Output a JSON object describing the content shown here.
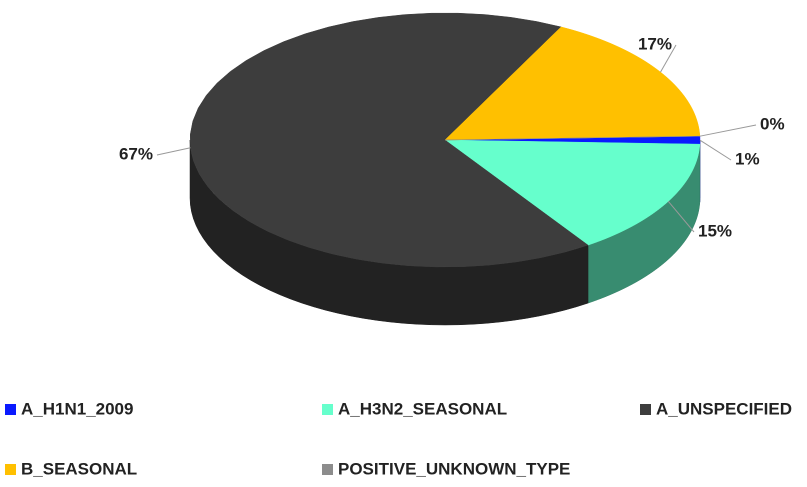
{
  "chart_data": {
    "type": "pie3d",
    "categories": [
      "A_H1N1_2009",
      "A_H3N2_SEASONAL",
      "A_UNSPECIFIED",
      "B_SEASONAL",
      "POSITIVE_UNKNOWN_TYPE"
    ],
    "values": [
      1,
      15,
      67,
      17,
      0
    ],
    "colors": [
      "#0a1aff",
      "#66ffcc",
      "#3d3d3d",
      "#ffc000",
      "#8c8c8c"
    ],
    "legend": "bottom"
  }
}
